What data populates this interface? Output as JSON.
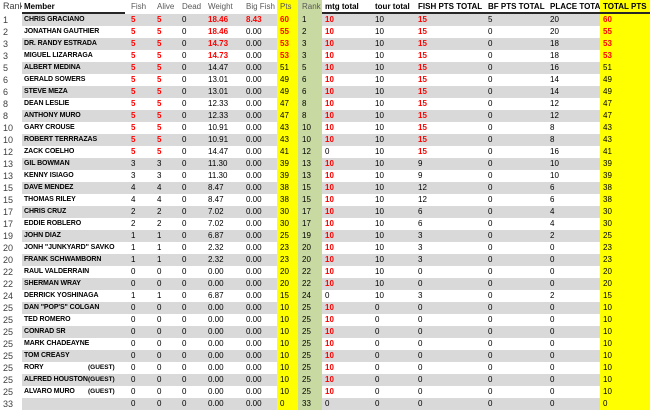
{
  "app": "spreadsheet-leaderboard",
  "colors": {
    "stripe_gray": "#d9d9d9",
    "highlight_yellow": "#ffff00",
    "highlight_green": "#c8d9a1",
    "alert_red": "#ff0000",
    "header_gray_text": "#595959"
  },
  "table": {
    "columns": [
      {
        "key": "rank",
        "label": "Rank",
        "header_class": ""
      },
      {
        "key": "member",
        "label": "Member",
        "header_class": "h-bold h-underline"
      },
      {
        "key": "fish",
        "label": "Fish",
        "header_class": ""
      },
      {
        "key": "alive",
        "label": "Alive",
        "header_class": ""
      },
      {
        "key": "dead",
        "label": "Dead",
        "header_class": ""
      },
      {
        "key": "weight",
        "label": "Weight",
        "header_class": ""
      },
      {
        "key": "big_fish",
        "label": "Big Fish",
        "header_class": ""
      },
      {
        "key": "pts",
        "label": "Pts",
        "header_class": ""
      },
      {
        "key": "rank2",
        "label": "Rank",
        "header_class": ""
      },
      {
        "key": "mtg",
        "label": "mtg total",
        "header_class": "h-bold h-underline"
      },
      {
        "key": "tour",
        "label": "tour total",
        "header_class": "h-bold h-underline"
      },
      {
        "key": "fish_pts",
        "label": "FISH PTS TOTAL",
        "header_class": "h-bold h-underline"
      },
      {
        "key": "bf_pts",
        "label": "BF PTS TOTAL",
        "header_class": "h-bold h-underline"
      },
      {
        "key": "place",
        "label": "PLACE TOTAL",
        "header_class": "h-bold h-underline"
      },
      {
        "key": "total",
        "label": "TOTAL PTS",
        "header_class": "h-bold h-underline"
      }
    ],
    "rows": [
      {
        "rank": "1",
        "member": "CHRIS GRACIANO",
        "guest": "",
        "fish": "5",
        "alive": "5",
        "dead": "0",
        "weight": "18.46",
        "big_fish": "8.43",
        "pts": "60",
        "rank2": "1",
        "mtg": "10",
        "tour": "10",
        "fish_pts": "15",
        "bf_pts": "5",
        "place": "20",
        "total": "60",
        "red": [
          "fish",
          "alive",
          "weight",
          "big_fish",
          "pts",
          "mtg",
          "fish_pts",
          "total"
        ]
      },
      {
        "rank": "2",
        "member": "JONATHAN GAUTHIER",
        "guest": "",
        "fish": "5",
        "alive": "5",
        "dead": "0",
        "weight": "18.46",
        "big_fish": "0.00",
        "pts": "55",
        "rank2": "2",
        "mtg": "10",
        "tour": "10",
        "fish_pts": "15",
        "bf_pts": "0",
        "place": "20",
        "total": "55",
        "red": [
          "fish",
          "alive",
          "weight",
          "pts",
          "mtg",
          "fish_pts",
          "total"
        ]
      },
      {
        "rank": "3",
        "member": "DR. RANDY ESTRADA",
        "guest": "",
        "fish": "5",
        "alive": "5",
        "dead": "0",
        "weight": "14.73",
        "big_fish": "0.00",
        "pts": "53",
        "rank2": "3",
        "mtg": "10",
        "tour": "10",
        "fish_pts": "15",
        "bf_pts": "0",
        "place": "18",
        "total": "53",
        "red": [
          "fish",
          "alive",
          "weight",
          "pts",
          "mtg",
          "fish_pts",
          "total"
        ]
      },
      {
        "rank": "3",
        "member": "MIGUEL LIZARRAGA",
        "guest": "",
        "fish": "5",
        "alive": "5",
        "dead": "0",
        "weight": "14.73",
        "big_fish": "0.00",
        "pts": "53",
        "rank2": "3",
        "mtg": "10",
        "tour": "10",
        "fish_pts": "15",
        "bf_pts": "0",
        "place": "18",
        "total": "53",
        "red": [
          "fish",
          "alive",
          "weight",
          "pts",
          "mtg",
          "fish_pts",
          "total"
        ]
      },
      {
        "rank": "5",
        "member": "ALBERT MEDINA",
        "guest": "",
        "fish": "5",
        "alive": "5",
        "dead": "0",
        "weight": "14.47",
        "big_fish": "0.00",
        "pts": "51",
        "rank2": "5",
        "mtg": "10",
        "tour": "10",
        "fish_pts": "15",
        "bf_pts": "0",
        "place": "16",
        "total": "51",
        "red": [
          "fish",
          "alive",
          "mtg",
          "fish_pts"
        ]
      },
      {
        "rank": "6",
        "member": "GERALD SOWERS",
        "guest": "",
        "fish": "5",
        "alive": "5",
        "dead": "0",
        "weight": "13.01",
        "big_fish": "0.00",
        "pts": "49",
        "rank2": "6",
        "mtg": "10",
        "tour": "10",
        "fish_pts": "15",
        "bf_pts": "0",
        "place": "14",
        "total": "49",
        "red": [
          "fish",
          "alive",
          "mtg",
          "fish_pts"
        ]
      },
      {
        "rank": "6",
        "member": "STEVE MEZA",
        "guest": "",
        "fish": "5",
        "alive": "5",
        "dead": "0",
        "weight": "13.01",
        "big_fish": "0.00",
        "pts": "49",
        "rank2": "6",
        "mtg": "10",
        "tour": "10",
        "fish_pts": "15",
        "bf_pts": "0",
        "place": "14",
        "total": "49",
        "red": [
          "fish",
          "alive",
          "mtg",
          "fish_pts"
        ]
      },
      {
        "rank": "8",
        "member": "DEAN LESLIE",
        "guest": "",
        "fish": "5",
        "alive": "5",
        "dead": "0",
        "weight": "12.33",
        "big_fish": "0.00",
        "pts": "47",
        "rank2": "8",
        "mtg": "10",
        "tour": "10",
        "fish_pts": "15",
        "bf_pts": "0",
        "place": "12",
        "total": "47",
        "red": [
          "fish",
          "alive",
          "mtg",
          "fish_pts"
        ]
      },
      {
        "rank": "8",
        "member": "ANTHONY MURO",
        "guest": "",
        "fish": "5",
        "alive": "5",
        "dead": "0",
        "weight": "12.33",
        "big_fish": "0.00",
        "pts": "47",
        "rank2": "8",
        "mtg": "10",
        "tour": "10",
        "fish_pts": "15",
        "bf_pts": "0",
        "place": "12",
        "total": "47",
        "red": [
          "fish",
          "alive",
          "mtg",
          "fish_pts"
        ]
      },
      {
        "rank": "10",
        "member": "GARY CROUSE",
        "guest": "",
        "fish": "5",
        "alive": "5",
        "dead": "0",
        "weight": "10.91",
        "big_fish": "0.00",
        "pts": "43",
        "rank2": "10",
        "mtg": "10",
        "tour": "10",
        "fish_pts": "15",
        "bf_pts": "0",
        "place": "8",
        "total": "43",
        "red": [
          "fish",
          "alive",
          "mtg",
          "fish_pts"
        ]
      },
      {
        "rank": "10",
        "member": "ROBERT TERRRAZAS",
        "guest": "",
        "fish": "5",
        "alive": "5",
        "dead": "0",
        "weight": "10.91",
        "big_fish": "0.00",
        "pts": "43",
        "rank2": "10",
        "mtg": "10",
        "tour": "10",
        "fish_pts": "15",
        "bf_pts": "0",
        "place": "8",
        "total": "43",
        "red": [
          "fish",
          "alive",
          "mtg",
          "fish_pts"
        ]
      },
      {
        "rank": "12",
        "member": "ZACK COELHO",
        "guest": "",
        "fish": "5",
        "alive": "5",
        "dead": "0",
        "weight": "14.47",
        "big_fish": "0.00",
        "pts": "41",
        "rank2": "12",
        "mtg": "0",
        "tour": "10",
        "fish_pts": "15",
        "bf_pts": "0",
        "place": "16",
        "total": "41",
        "red": [
          "fish",
          "alive",
          "fish_pts"
        ]
      },
      {
        "rank": "13",
        "member": "GIL BOWMAN",
        "guest": "",
        "fish": "3",
        "alive": "3",
        "dead": "0",
        "weight": "11.30",
        "big_fish": "0.00",
        "pts": "39",
        "rank2": "13",
        "mtg": "10",
        "tour": "10",
        "fish_pts": "9",
        "bf_pts": "0",
        "place": "10",
        "total": "39",
        "red": [
          "mtg"
        ]
      },
      {
        "rank": "13",
        "member": "KENNY ISIAGO",
        "guest": "",
        "fish": "3",
        "alive": "3",
        "dead": "0",
        "weight": "11.30",
        "big_fish": "0.00",
        "pts": "39",
        "rank2": "13",
        "mtg": "10",
        "tour": "10",
        "fish_pts": "9",
        "bf_pts": "0",
        "place": "10",
        "total": "39",
        "red": [
          "mtg"
        ]
      },
      {
        "rank": "15",
        "member": "DAVE MENDEZ",
        "guest": "",
        "fish": "4",
        "alive": "4",
        "dead": "0",
        "weight": "8.47",
        "big_fish": "0.00",
        "pts": "38",
        "rank2": "15",
        "mtg": "10",
        "tour": "10",
        "fish_pts": "12",
        "bf_pts": "0",
        "place": "6",
        "total": "38",
        "red": [
          "mtg"
        ]
      },
      {
        "rank": "15",
        "member": "THOMAS RILEY",
        "guest": "",
        "fish": "4",
        "alive": "4",
        "dead": "0",
        "weight": "8.47",
        "big_fish": "0.00",
        "pts": "38",
        "rank2": "15",
        "mtg": "10",
        "tour": "10",
        "fish_pts": "12",
        "bf_pts": "0",
        "place": "6",
        "total": "38",
        "red": [
          "mtg"
        ]
      },
      {
        "rank": "17",
        "member": "CHRIS CRUZ",
        "guest": "",
        "fish": "2",
        "alive": "2",
        "dead": "0",
        "weight": "7.02",
        "big_fish": "0.00",
        "pts": "30",
        "rank2": "17",
        "mtg": "10",
        "tour": "10",
        "fish_pts": "6",
        "bf_pts": "0",
        "place": "4",
        "total": "30",
        "red": [
          "mtg"
        ]
      },
      {
        "rank": "17",
        "member": "EDDIE ROBLERO",
        "guest": "",
        "fish": "2",
        "alive": "2",
        "dead": "0",
        "weight": "7.02",
        "big_fish": "0.00",
        "pts": "30",
        "rank2": "17",
        "mtg": "10",
        "tour": "10",
        "fish_pts": "6",
        "bf_pts": "0",
        "place": "4",
        "total": "30",
        "red": [
          "mtg"
        ]
      },
      {
        "rank": "19",
        "member": "JOHN DIAZ",
        "guest": "",
        "fish": "1",
        "alive": "1",
        "dead": "0",
        "weight": "6.87",
        "big_fish": "0.00",
        "pts": "25",
        "rank2": "19",
        "mtg": "10",
        "tour": "10",
        "fish_pts": "3",
        "bf_pts": "0",
        "place": "2",
        "total": "25",
        "red": [
          "mtg"
        ]
      },
      {
        "rank": "20",
        "member": "JONH \"JUNKYARD\" SAVKO",
        "guest": "",
        "fish": "1",
        "alive": "1",
        "dead": "0",
        "weight": "2.32",
        "big_fish": "0.00",
        "pts": "23",
        "rank2": "20",
        "mtg": "10",
        "tour": "10",
        "fish_pts": "3",
        "bf_pts": "0",
        "place": "0",
        "total": "23",
        "red": [
          "mtg"
        ]
      },
      {
        "rank": "20",
        "member": "FRANK SCHWAMBORN",
        "guest": "",
        "fish": "1",
        "alive": "1",
        "dead": "0",
        "weight": "2.32",
        "big_fish": "0.00",
        "pts": "23",
        "rank2": "20",
        "mtg": "10",
        "tour": "10",
        "fish_pts": "3",
        "bf_pts": "0",
        "place": "0",
        "total": "23",
        "red": [
          "mtg"
        ]
      },
      {
        "rank": "22",
        "member": "RAUL VALDERRAIN",
        "guest": "",
        "fish": "0",
        "alive": "0",
        "dead": "0",
        "weight": "0.00",
        "big_fish": "0.00",
        "pts": "20",
        "rank2": "22",
        "mtg": "10",
        "tour": "10",
        "fish_pts": "0",
        "bf_pts": "0",
        "place": "0",
        "total": "20",
        "red": [
          "mtg"
        ]
      },
      {
        "rank": "22",
        "member": "SHERMAN WRAY",
        "guest": "",
        "fish": "0",
        "alive": "0",
        "dead": "0",
        "weight": "0.00",
        "big_fish": "0.00",
        "pts": "20",
        "rank2": "22",
        "mtg": "10",
        "tour": "10",
        "fish_pts": "0",
        "bf_pts": "0",
        "place": "0",
        "total": "20",
        "red": [
          "mtg"
        ]
      },
      {
        "rank": "24",
        "member": "DERRICK YOSHINAGA",
        "guest": "",
        "fish": "1",
        "alive": "1",
        "dead": "0",
        "weight": "6.87",
        "big_fish": "0.00",
        "pts": "15",
        "rank2": "24",
        "mtg": "0",
        "tour": "10",
        "fish_pts": "3",
        "bf_pts": "0",
        "place": "2",
        "total": "15",
        "red": []
      },
      {
        "rank": "25",
        "member": "DAN \"POP'S\" COLGAN",
        "guest": "",
        "fish": "0",
        "alive": "0",
        "dead": "0",
        "weight": "0.00",
        "big_fish": "0.00",
        "pts": "10",
        "rank2": "25",
        "mtg": "10",
        "tour": "0",
        "fish_pts": "0",
        "bf_pts": "0",
        "place": "0",
        "total": "10",
        "red": [
          "mtg"
        ]
      },
      {
        "rank": "25",
        "member": "TED ROMERO",
        "guest": "",
        "fish": "0",
        "alive": "0",
        "dead": "0",
        "weight": "0.00",
        "big_fish": "0.00",
        "pts": "10",
        "rank2": "25",
        "mtg": "10",
        "tour": "0",
        "fish_pts": "0",
        "bf_pts": "0",
        "place": "0",
        "total": "10",
        "red": [
          "mtg"
        ]
      },
      {
        "rank": "25",
        "member": "CONRAD SR",
        "guest": "",
        "fish": "0",
        "alive": "0",
        "dead": "0",
        "weight": "0.00",
        "big_fish": "0.00",
        "pts": "10",
        "rank2": "25",
        "mtg": "10",
        "tour": "0",
        "fish_pts": "0",
        "bf_pts": "0",
        "place": "0",
        "total": "10",
        "red": [
          "mtg"
        ]
      },
      {
        "rank": "25",
        "member": "MARK CHADEAYNE",
        "guest": "",
        "fish": "0",
        "alive": "0",
        "dead": "0",
        "weight": "0.00",
        "big_fish": "0.00",
        "pts": "10",
        "rank2": "25",
        "mtg": "10",
        "tour": "0",
        "fish_pts": "0",
        "bf_pts": "0",
        "place": "0",
        "total": "10",
        "red": [
          "mtg"
        ]
      },
      {
        "rank": "25",
        "member": "TOM CREASY",
        "guest": "",
        "fish": "0",
        "alive": "0",
        "dead": "0",
        "weight": "0.00",
        "big_fish": "0.00",
        "pts": "10",
        "rank2": "25",
        "mtg": "10",
        "tour": "0",
        "fish_pts": "0",
        "bf_pts": "0",
        "place": "0",
        "total": "10",
        "red": [
          "mtg"
        ]
      },
      {
        "rank": "25",
        "member": "RORY",
        "guest": "(GUEST)",
        "fish": "0",
        "alive": "0",
        "dead": "0",
        "weight": "0.00",
        "big_fish": "0.00",
        "pts": "10",
        "rank2": "25",
        "mtg": "10",
        "tour": "0",
        "fish_pts": "0",
        "bf_pts": "0",
        "place": "0",
        "total": "10",
        "red": [
          "mtg"
        ]
      },
      {
        "rank": "25",
        "member": "ALFRED HOUSTON",
        "guest": "(GUEST)",
        "fish": "0",
        "alive": "0",
        "dead": "0",
        "weight": "0.00",
        "big_fish": "0.00",
        "pts": "10",
        "rank2": "25",
        "mtg": "10",
        "tour": "0",
        "fish_pts": "0",
        "bf_pts": "0",
        "place": "0",
        "total": "10",
        "red": [
          "mtg"
        ]
      },
      {
        "rank": "25",
        "member": "ALVARO MURO",
        "guest": "(GUEST)",
        "fish": "0",
        "alive": "0",
        "dead": "0",
        "weight": "0.00",
        "big_fish": "0.00",
        "pts": "10",
        "rank2": "25",
        "mtg": "10",
        "tour": "0",
        "fish_pts": "0",
        "bf_pts": "0",
        "place": "0",
        "total": "10",
        "red": [
          "mtg"
        ]
      },
      {
        "rank": "33",
        "member": "",
        "guest": "",
        "fish": "0",
        "alive": "0",
        "dead": "0",
        "weight": "0.00",
        "big_fish": "0.00",
        "pts": "0",
        "rank2": "33",
        "mtg": "0",
        "tour": "0",
        "fish_pts": "0",
        "bf_pts": "0",
        "place": "0",
        "total": "0",
        "red": []
      }
    ]
  }
}
